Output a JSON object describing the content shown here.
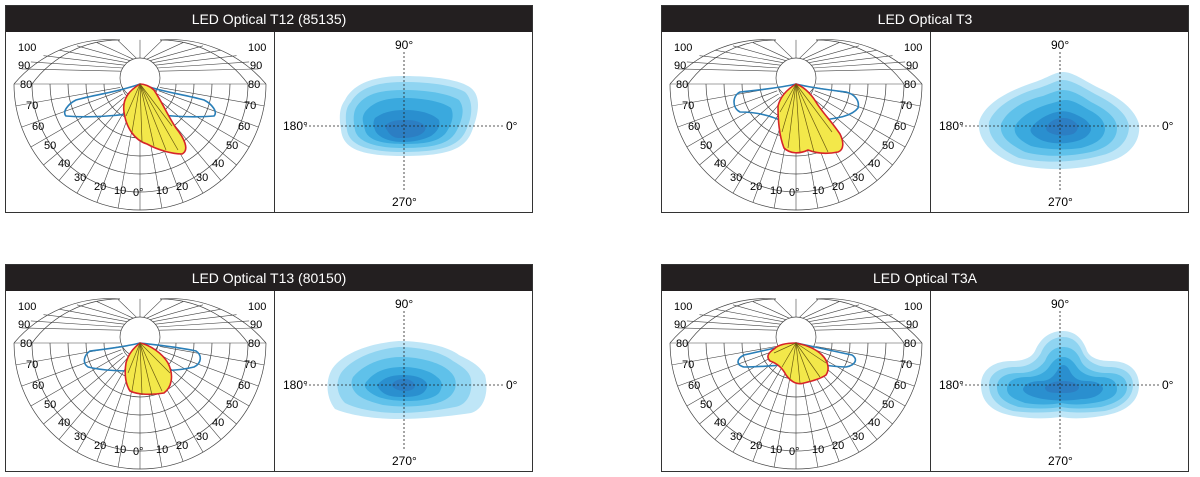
{
  "panels": [
    {
      "title": "LED Optical T12 (85135)",
      "polar_left_labels": [
        "100",
        "90",
        "80",
        "70",
        "60",
        "50",
        "40",
        "30",
        "20",
        "10",
        "0°"
      ],
      "polar_right_labels": [
        "100",
        "90",
        "80",
        "70",
        "60",
        "50",
        "40",
        "30",
        "20",
        "10"
      ],
      "iso_labels": {
        "top": "90°",
        "bottom": "270°",
        "left": "180°",
        "right": "0°"
      }
    },
    {
      "title": "LED Optical T3",
      "polar_left_labels": [
        "100",
        "90",
        "80",
        "70",
        "60",
        "50",
        "40",
        "30",
        "20",
        "10",
        "0°"
      ],
      "polar_right_labels": [
        "100",
        "90",
        "80",
        "70",
        "60",
        "50",
        "40",
        "30",
        "20",
        "10"
      ],
      "iso_labels": {
        "top": "90°",
        "bottom": "270°",
        "left": "180°",
        "right": "0°"
      }
    },
    {
      "title": "LED Optical T13 (80150)",
      "polar_left_labels": [
        "100",
        "90",
        "80",
        "70",
        "60",
        "50",
        "40",
        "30",
        "20",
        "10",
        "0°"
      ],
      "polar_right_labels": [
        "100",
        "90",
        "80",
        "70",
        "60",
        "50",
        "40",
        "30",
        "20",
        "10"
      ],
      "iso_labels": {
        "top": "90°",
        "bottom": "270°",
        "left": "180°",
        "right": "0°"
      }
    },
    {
      "title": "LED Optical T3A",
      "polar_left_labels": [
        "100",
        "90",
        "80",
        "70",
        "60",
        "50",
        "40",
        "30",
        "20",
        "10",
        "0°"
      ],
      "polar_right_labels": [
        "100",
        "90",
        "80",
        "70",
        "60",
        "50",
        "40",
        "30",
        "20",
        "10"
      ],
      "iso_labels": {
        "top": "90°",
        "bottom": "270°",
        "left": "180°",
        "right": "0°"
      }
    }
  ],
  "colors": {
    "title_bg": "#231f20",
    "title_text": "#ffffff",
    "grid": "#444444",
    "beam_fill": "#f3e84a",
    "beam_stroke": "#d6242a",
    "beam_spokes": "#6b5a10",
    "blue_curve": "#2a7fb8",
    "iso_levels": [
      "#bfe6f7",
      "#8fd4f1",
      "#5fc1ea",
      "#3aa9de",
      "#2a8fcf",
      "#2c7ec3"
    ]
  }
}
